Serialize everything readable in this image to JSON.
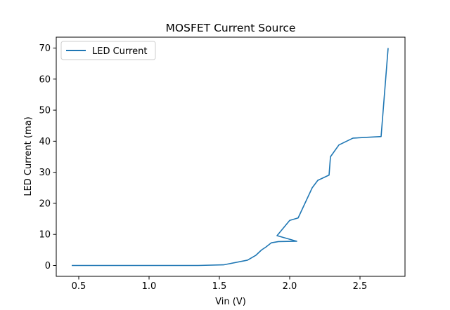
{
  "chart_data": {
    "type": "line",
    "title": "MOSFET Current Source",
    "xlabel": "Vin (V)",
    "ylabel": "LED Current (ma)",
    "xlim": [
      0.34,
      2.82
    ],
    "ylim": [
      -3.5,
      73.5
    ],
    "xticks": [
      0.5,
      1.0,
      1.5,
      2.0,
      2.5
    ],
    "xtick_labels": [
      "0.5",
      "1.0",
      "1.5",
      "2.0",
      "2.5"
    ],
    "yticks": [
      0,
      10,
      20,
      30,
      40,
      50,
      60,
      70
    ],
    "ytick_labels": [
      "0",
      "10",
      "20",
      "30",
      "40",
      "50",
      "60",
      "70"
    ],
    "grid": false,
    "legend_position": "upper-left",
    "series": [
      {
        "name": "LED Current",
        "color": "#1f77b4",
        "x": [
          0.45,
          1.0,
          1.35,
          1.53,
          1.7,
          1.76,
          1.8,
          1.83,
          1.87,
          1.92,
          2.05,
          1.91,
          2.0,
          2.06,
          2.16,
          2.2,
          2.28,
          2.29,
          2.35,
          2.45,
          2.65,
          2.7
        ],
        "y": [
          0.0,
          0.0,
          0.0,
          0.2,
          1.7,
          3.3,
          5.0,
          5.9,
          7.3,
          7.7,
          7.8,
          9.6,
          14.5,
          15.3,
          25.0,
          27.4,
          29.1,
          35.0,
          38.8,
          41.0,
          41.5,
          70.0
        ]
      }
    ]
  }
}
